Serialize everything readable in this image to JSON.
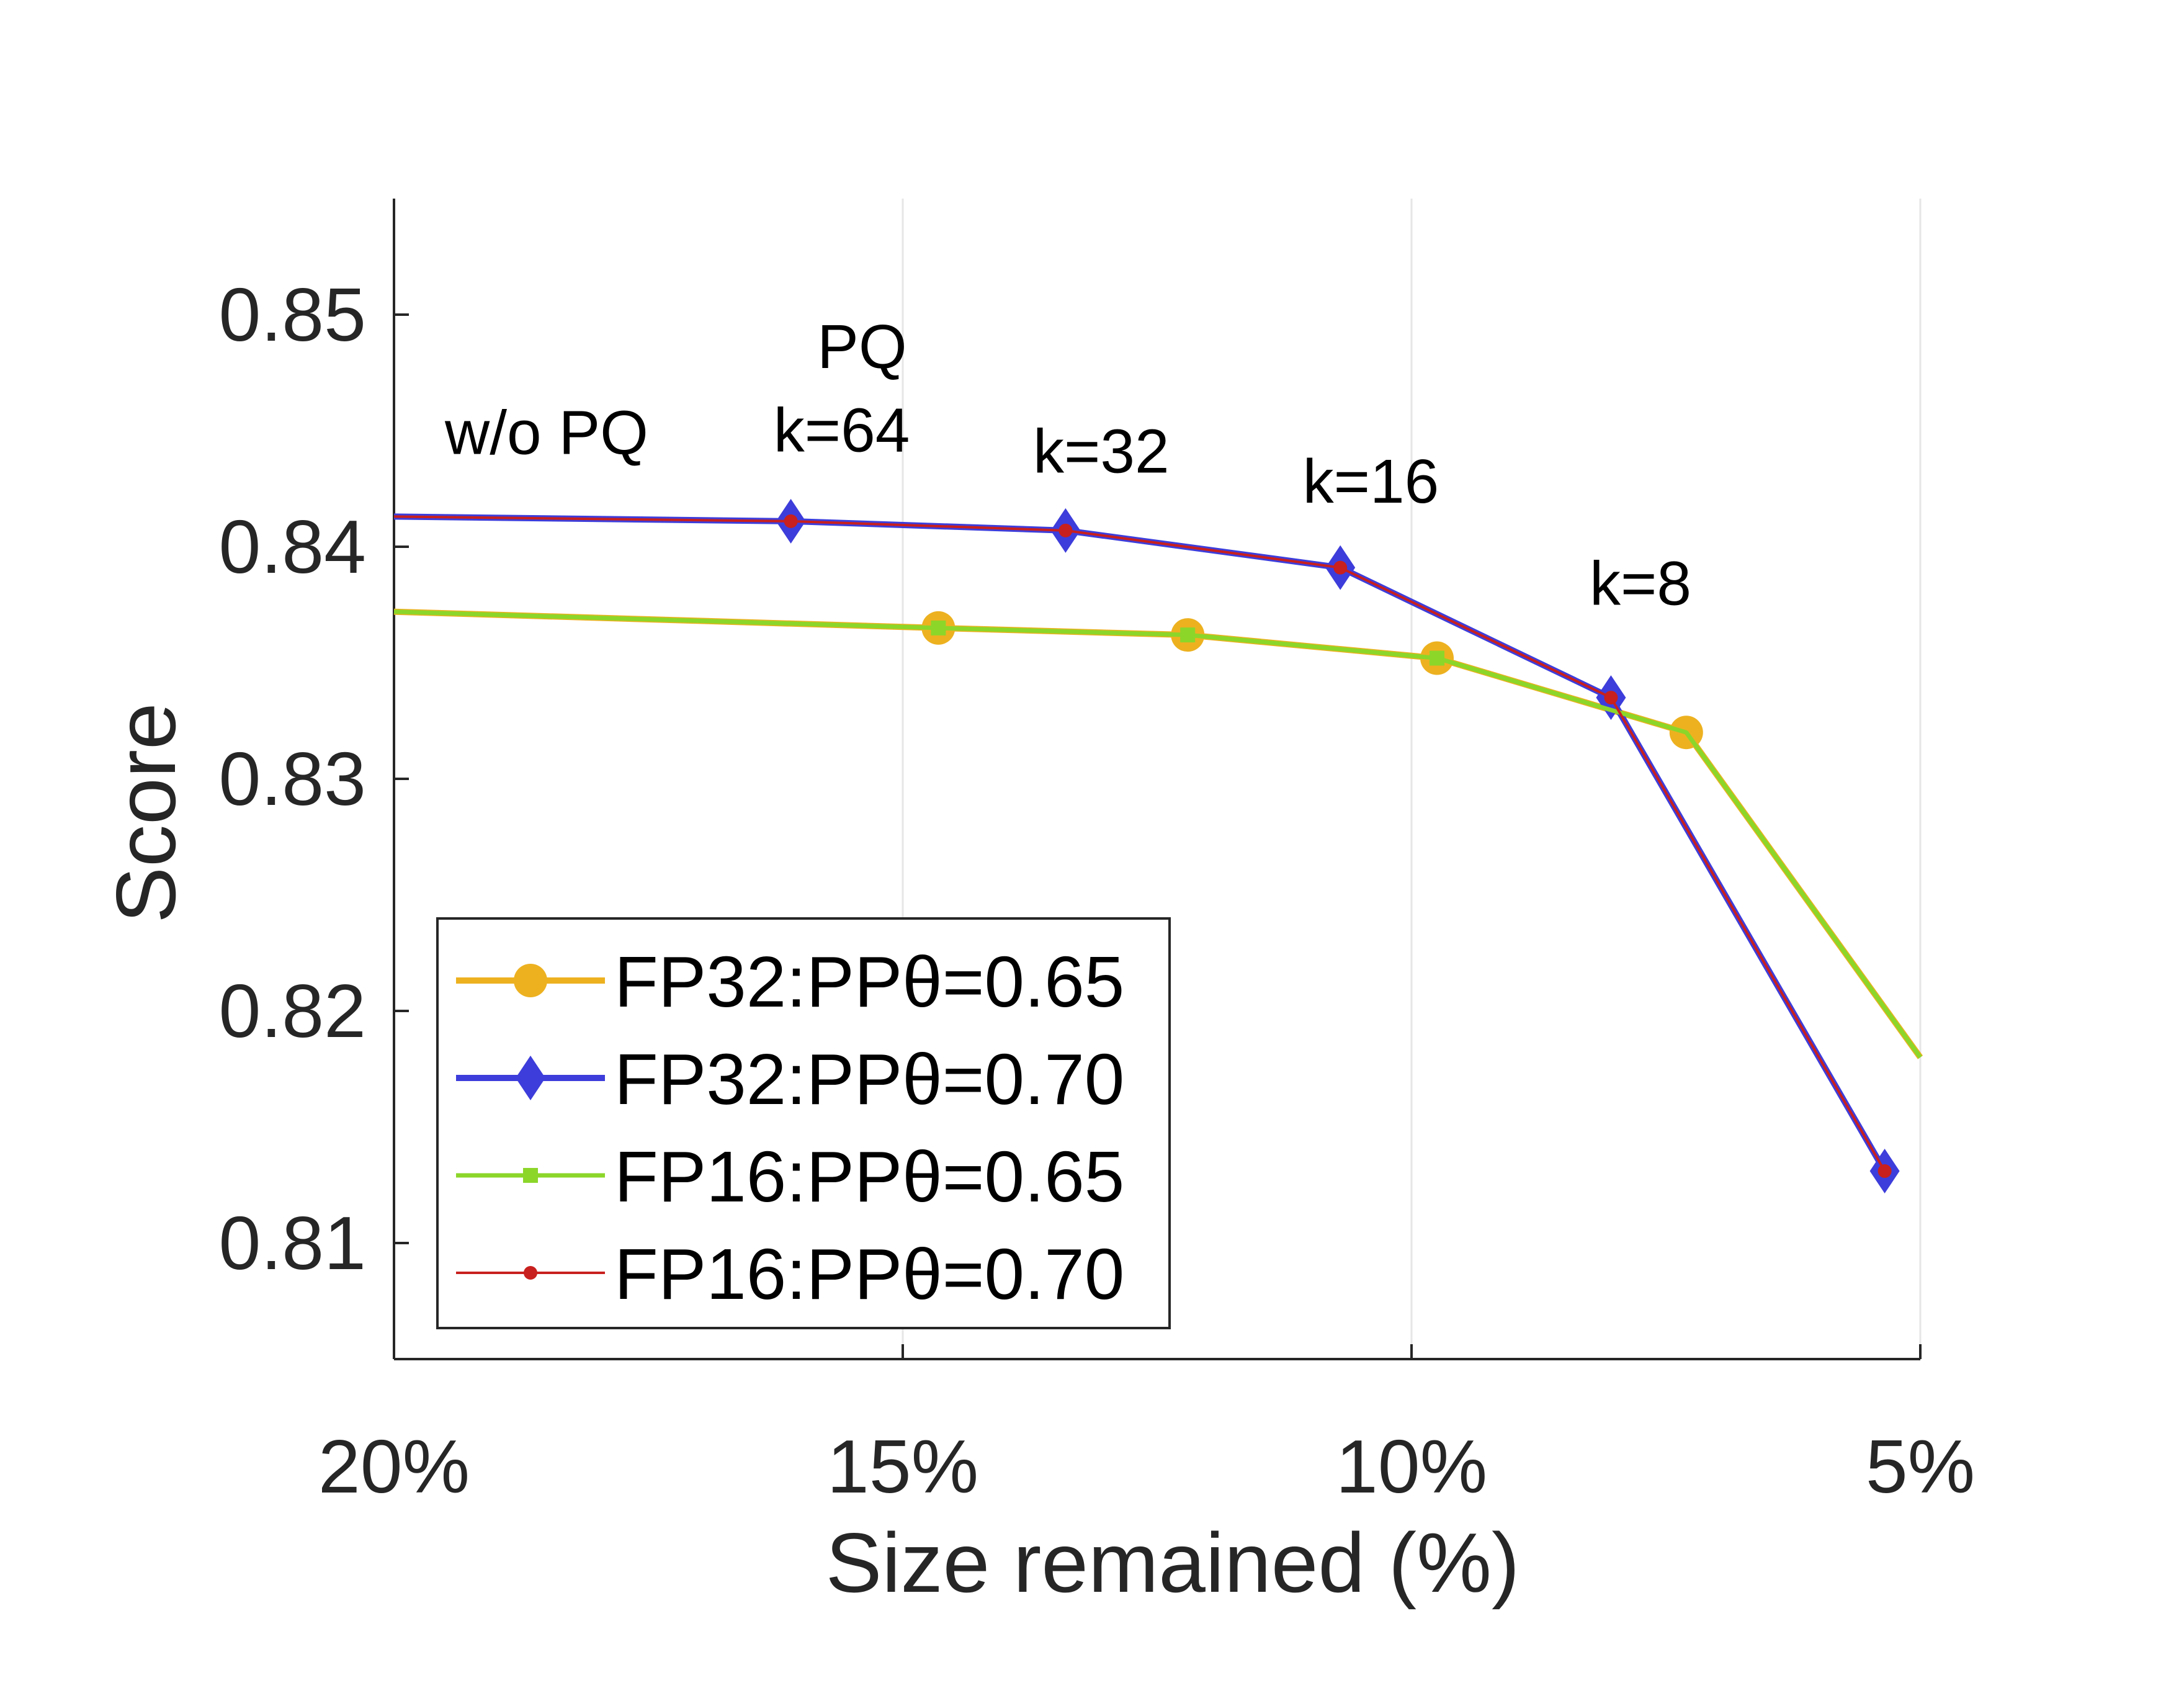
{
  "chart_data": {
    "type": "line",
    "xlabel": "Size remained (%)",
    "ylabel": "Score",
    "xlim": [
      20,
      5
    ],
    "ylim": [
      0.805,
      0.855
    ],
    "x_reversed": true,
    "grid": "vertical",
    "legend_position": "bottom-left",
    "x_ticks": [
      20,
      15,
      10,
      5
    ],
    "x_tick_labels": [
      "20%",
      "15%",
      "10%",
      "5%"
    ],
    "y_ticks": [
      0.81,
      0.82,
      0.83,
      0.84,
      0.85
    ],
    "y_tick_labels": [
      "0.81",
      "0.82",
      "0.83",
      "0.84",
      "0.85"
    ],
    "series": [
      {
        "name": "FP32:PPθ=0.65",
        "color": "#EDB120",
        "marker": "circle",
        "points": [
          [
            20.0,
            0.8372
          ],
          [
            14.65,
            0.8365
          ],
          [
            12.2,
            0.8362
          ],
          [
            9.75,
            0.8352
          ],
          [
            7.3,
            0.832
          ],
          [
            5.0,
            0.818
          ]
        ],
        "marker_points": [
          [
            14.65,
            0.8365
          ],
          [
            12.2,
            0.8362
          ],
          [
            9.75,
            0.8352
          ],
          [
            7.3,
            0.832
          ]
        ]
      },
      {
        "name": "FP32:PPθ=0.70",
        "color": "#3D3DDB",
        "marker": "diamond",
        "points": [
          [
            20.0,
            0.8413
          ],
          [
            16.1,
            0.8411
          ],
          [
            13.4,
            0.8407
          ],
          [
            10.7,
            0.8391
          ],
          [
            8.04,
            0.8335
          ],
          [
            5.35,
            0.8131
          ]
        ],
        "marker_points": [
          [
            16.1,
            0.8411
          ],
          [
            13.4,
            0.8407
          ],
          [
            10.7,
            0.8391
          ],
          [
            8.04,
            0.8335
          ],
          [
            5.35,
            0.8131
          ]
        ]
      },
      {
        "name": "FP16:PPθ=0.65",
        "color": "#8CD62A",
        "marker": "square",
        "points": [
          [
            20.0,
            0.8372
          ],
          [
            14.65,
            0.8365
          ],
          [
            12.2,
            0.8362
          ],
          [
            9.75,
            0.8352
          ],
          [
            7.3,
            0.832
          ],
          [
            5.0,
            0.818
          ]
        ],
        "marker_points": [
          [
            14.65,
            0.8365
          ],
          [
            12.2,
            0.8362
          ],
          [
            9.75,
            0.8352
          ]
        ]
      },
      {
        "name": "FP16:PPθ=0.70",
        "color": "#C8201E",
        "marker": "star",
        "points": [
          [
            20.0,
            0.8413
          ],
          [
            16.1,
            0.8411
          ],
          [
            13.4,
            0.8407
          ],
          [
            10.7,
            0.8391
          ],
          [
            8.04,
            0.8335
          ],
          [
            5.35,
            0.8131
          ]
        ],
        "marker_points": [
          [
            16.1,
            0.8411
          ],
          [
            13.4,
            0.8407
          ],
          [
            10.7,
            0.8391
          ],
          [
            8.04,
            0.8335
          ],
          [
            5.35,
            0.8131
          ]
        ]
      }
    ],
    "annotations": [
      {
        "text": "w/o PQ",
        "x": 18.5,
        "y": 0.844
      },
      {
        "text": "PQ",
        "x": 15.4,
        "y": 0.8477
      },
      {
        "text": "k=64",
        "x": 15.6,
        "y": 0.8441
      },
      {
        "text": "k=32",
        "x": 13.05,
        "y": 0.8432
      },
      {
        "text": "k=16",
        "x": 10.4,
        "y": 0.8419
      },
      {
        "text": "k=8",
        "x": 7.75,
        "y": 0.8375
      }
    ]
  }
}
